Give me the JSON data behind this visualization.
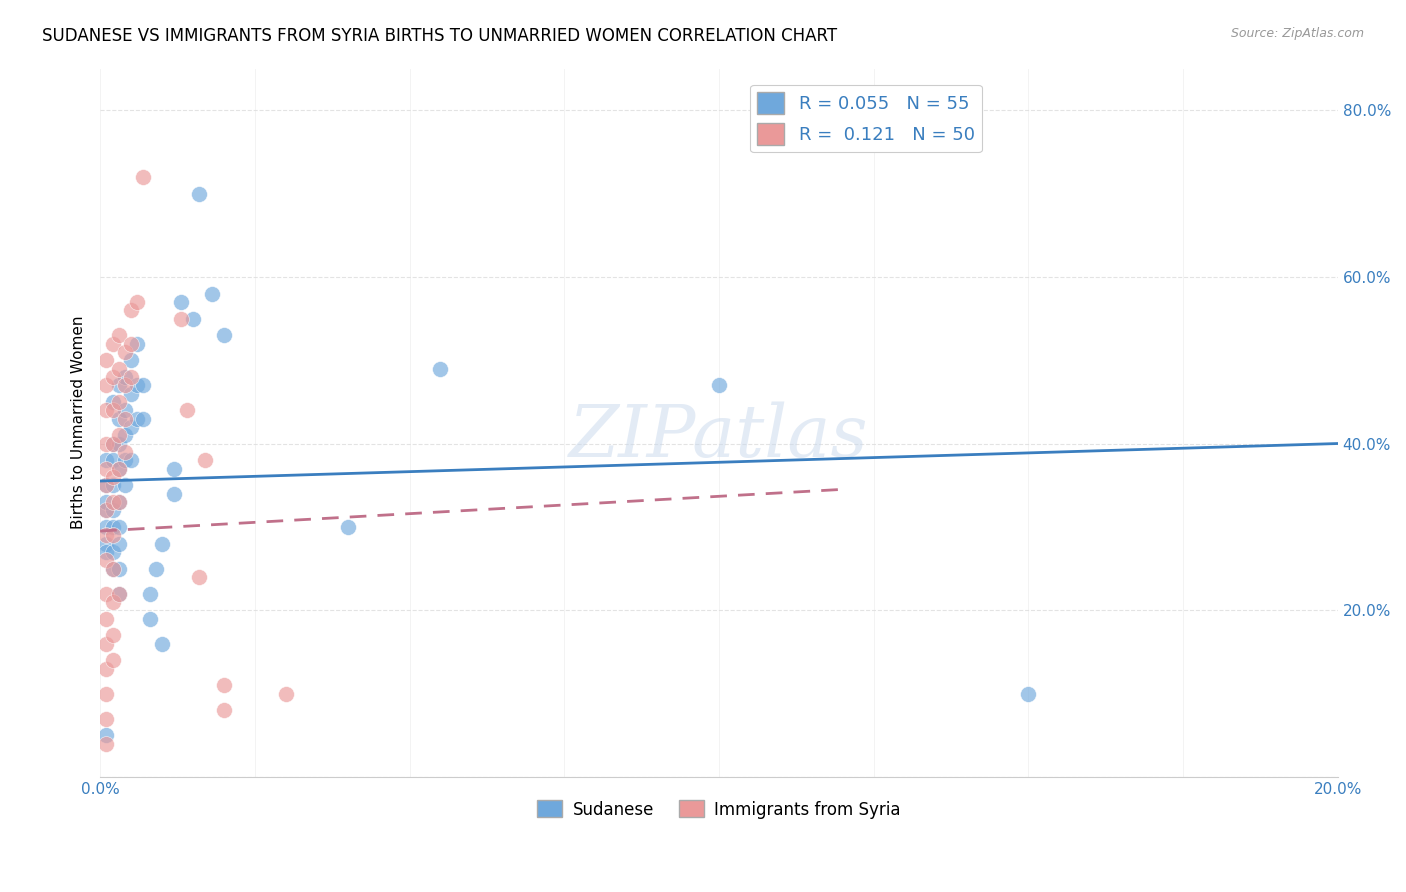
{
  "title": "SUDANESE VS IMMIGRANTS FROM SYRIA BIRTHS TO UNMARRIED WOMEN CORRELATION CHART",
  "source": "Source: ZipAtlas.com",
  "ylabel": "Births to Unmarried Women",
  "xlim": [
    0.0,
    0.2
  ],
  "ylim": [
    0.0,
    0.85
  ],
  "color_blue": "#6fa8dc",
  "color_pink": "#ea9999",
  "legend_label_blue": "Sudanese",
  "legend_label_pink": "Immigrants from Syria",
  "R_blue": 0.055,
  "N_blue": 55,
  "R_pink": 0.121,
  "N_pink": 50,
  "blue_scatter": [
    [
      0.001,
      0.35
    ],
    [
      0.001,
      0.38
    ],
    [
      0.001,
      0.32
    ],
    [
      0.001,
      0.3
    ],
    [
      0.001,
      0.28
    ],
    [
      0.001,
      0.27
    ],
    [
      0.001,
      0.33
    ],
    [
      0.002,
      0.45
    ],
    [
      0.002,
      0.4
    ],
    [
      0.002,
      0.38
    ],
    [
      0.002,
      0.35
    ],
    [
      0.002,
      0.32
    ],
    [
      0.002,
      0.3
    ],
    [
      0.002,
      0.27
    ],
    [
      0.002,
      0.25
    ],
    [
      0.003,
      0.47
    ],
    [
      0.003,
      0.43
    ],
    [
      0.003,
      0.4
    ],
    [
      0.003,
      0.37
    ],
    [
      0.003,
      0.33
    ],
    [
      0.003,
      0.3
    ],
    [
      0.003,
      0.28
    ],
    [
      0.003,
      0.25
    ],
    [
      0.003,
      0.22
    ],
    [
      0.004,
      0.48
    ],
    [
      0.004,
      0.44
    ],
    [
      0.004,
      0.41
    ],
    [
      0.004,
      0.38
    ],
    [
      0.004,
      0.35
    ],
    [
      0.005,
      0.5
    ],
    [
      0.005,
      0.46
    ],
    [
      0.005,
      0.42
    ],
    [
      0.005,
      0.38
    ],
    [
      0.006,
      0.52
    ],
    [
      0.006,
      0.47
    ],
    [
      0.006,
      0.43
    ],
    [
      0.007,
      0.47
    ],
    [
      0.007,
      0.43
    ],
    [
      0.008,
      0.22
    ],
    [
      0.008,
      0.19
    ],
    [
      0.009,
      0.25
    ],
    [
      0.01,
      0.28
    ],
    [
      0.01,
      0.16
    ],
    [
      0.012,
      0.37
    ],
    [
      0.012,
      0.34
    ],
    [
      0.013,
      0.57
    ],
    [
      0.015,
      0.55
    ],
    [
      0.016,
      0.7
    ],
    [
      0.018,
      0.58
    ],
    [
      0.02,
      0.53
    ],
    [
      0.04,
      0.3
    ],
    [
      0.055,
      0.49
    ],
    [
      0.1,
      0.47
    ],
    [
      0.15,
      0.1
    ],
    [
      0.001,
      0.05
    ]
  ],
  "pink_scatter": [
    [
      0.001,
      0.5
    ],
    [
      0.001,
      0.47
    ],
    [
      0.001,
      0.44
    ],
    [
      0.001,
      0.4
    ],
    [
      0.001,
      0.37
    ],
    [
      0.001,
      0.35
    ],
    [
      0.001,
      0.32
    ],
    [
      0.001,
      0.29
    ],
    [
      0.001,
      0.26
    ],
    [
      0.001,
      0.22
    ],
    [
      0.001,
      0.19
    ],
    [
      0.001,
      0.16
    ],
    [
      0.001,
      0.13
    ],
    [
      0.001,
      0.1
    ],
    [
      0.001,
      0.07
    ],
    [
      0.002,
      0.52
    ],
    [
      0.002,
      0.48
    ],
    [
      0.002,
      0.44
    ],
    [
      0.002,
      0.4
    ],
    [
      0.002,
      0.36
    ],
    [
      0.002,
      0.33
    ],
    [
      0.002,
      0.29
    ],
    [
      0.002,
      0.25
    ],
    [
      0.002,
      0.21
    ],
    [
      0.002,
      0.17
    ],
    [
      0.002,
      0.14
    ],
    [
      0.003,
      0.53
    ],
    [
      0.003,
      0.49
    ],
    [
      0.003,
      0.45
    ],
    [
      0.003,
      0.41
    ],
    [
      0.003,
      0.37
    ],
    [
      0.003,
      0.33
    ],
    [
      0.003,
      0.22
    ],
    [
      0.004,
      0.51
    ],
    [
      0.004,
      0.47
    ],
    [
      0.004,
      0.43
    ],
    [
      0.004,
      0.39
    ],
    [
      0.005,
      0.56
    ],
    [
      0.005,
      0.52
    ],
    [
      0.005,
      0.48
    ],
    [
      0.006,
      0.57
    ],
    [
      0.007,
      0.72
    ],
    [
      0.013,
      0.55
    ],
    [
      0.014,
      0.44
    ],
    [
      0.016,
      0.24
    ],
    [
      0.017,
      0.38
    ],
    [
      0.02,
      0.11
    ],
    [
      0.02,
      0.08
    ],
    [
      0.03,
      0.1
    ],
    [
      0.001,
      0.04
    ]
  ],
  "watermark": "ZIPatlas",
  "grid_color": "#dddddd",
  "blue_line_x": [
    0.0,
    0.2
  ],
  "blue_line_y": [
    0.355,
    0.4
  ],
  "pink_line_x": [
    0.0,
    0.12
  ],
  "pink_line_y": [
    0.295,
    0.345
  ]
}
